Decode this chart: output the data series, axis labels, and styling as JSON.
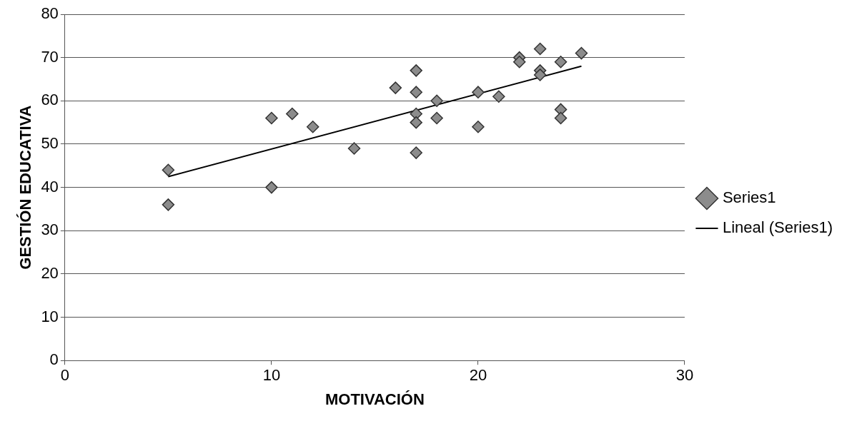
{
  "chart_data": {
    "type": "scatter",
    "xlabel": "MOTIVACIÓN",
    "ylabel": "GESTIÓN EDUCATIVA",
    "xlim": [
      0,
      30
    ],
    "xticks": [
      0,
      10,
      20,
      30
    ],
    "ylim": [
      0,
      80
    ],
    "yticks": [
      0,
      10,
      20,
      30,
      40,
      50,
      60,
      70,
      80
    ],
    "grid": "y",
    "legend": "right",
    "series": [
      {
        "name": "Series1",
        "type": "scatter",
        "marker": "diamond",
        "color": "#8c8c8c",
        "x": [
          5,
          5,
          10,
          10,
          11,
          12,
          14,
          16,
          17,
          17,
          17,
          17,
          17,
          18,
          18,
          20,
          20,
          21,
          22,
          22,
          23,
          23,
          23,
          24,
          24,
          24,
          25
        ],
        "values": [
          44,
          36,
          56,
          40,
          57,
          54,
          49,
          63,
          67,
          62,
          57,
          55,
          48,
          60,
          56,
          62,
          54,
          61,
          70,
          69,
          72,
          67,
          66,
          69,
          58,
          56,
          71
        ]
      },
      {
        "name": "Lineal (Series1)",
        "type": "line",
        "marker": "none",
        "color": "#000000",
        "x": [
          5,
          25
        ],
        "values": [
          42.5,
          68
        ]
      }
    ]
  }
}
